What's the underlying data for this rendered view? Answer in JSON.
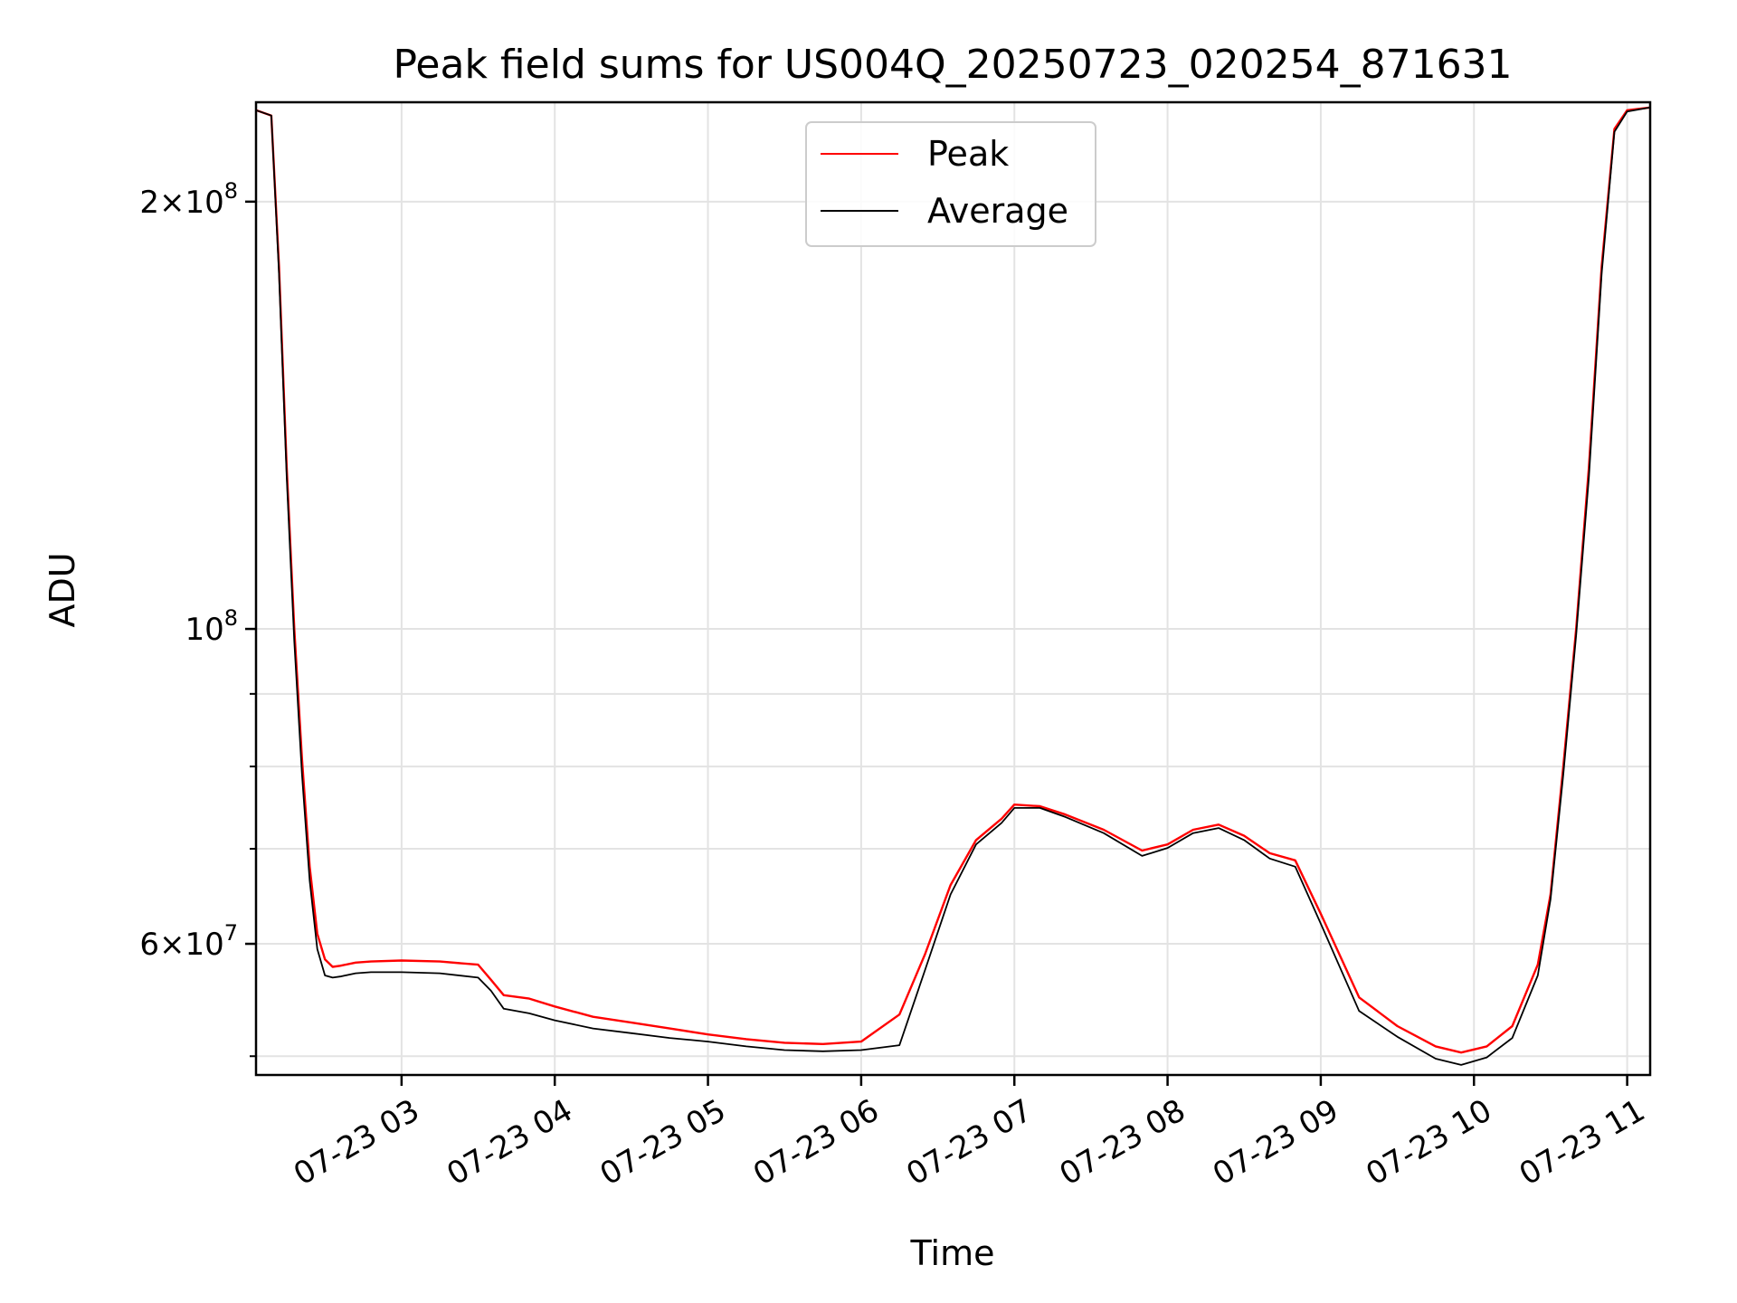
{
  "chart_data": {
    "type": "line",
    "title": "Peak field sums for US004Q_20250723_020254_871631",
    "xlabel": "Time",
    "ylabel": "ADU",
    "y_scale": "log",
    "ylim": [
      48500000,
      235000000
    ],
    "xlim": [
      "2025-07-23 02:03",
      "2025-07-23 11:09"
    ],
    "x_ticks": [
      "07-23 03",
      "07-23 04",
      "07-23 05",
      "07-23 06",
      "07-23 07",
      "07-23 08",
      "07-23 09",
      "07-23 10",
      "07-23 11"
    ],
    "x_tick_values": [
      "2025-07-23 03:00",
      "2025-07-23 04:00",
      "2025-07-23 05:00",
      "2025-07-23 06:00",
      "2025-07-23 07:00",
      "2025-07-23 08:00",
      "2025-07-23 09:00",
      "2025-07-23 10:00",
      "2025-07-23 11:00"
    ],
    "y_ticks": [
      {
        "value": 200000000,
        "base": "2×10",
        "exp": "8"
      },
      {
        "value": 100000000,
        "base": "10",
        "exp": "8"
      },
      {
        "value": 60000000,
        "base": "6×10",
        "exp": "7"
      }
    ],
    "y_minor_ticks": [
      50000000,
      70000000,
      80000000,
      90000000
    ],
    "grid": true,
    "legend_position": "top-center",
    "series": [
      {
        "name": "Peak",
        "color": "#ff0000",
        "x": [
          "2025-07-23 02:03",
          "2025-07-23 02:09",
          "2025-07-23 02:12",
          "2025-07-23 02:15",
          "2025-07-23 02:18",
          "2025-07-23 02:21",
          "2025-07-23 02:24",
          "2025-07-23 02:27",
          "2025-07-23 02:30",
          "2025-07-23 02:33",
          "2025-07-23 02:36",
          "2025-07-23 02:42",
          "2025-07-23 02:48",
          "2025-07-23 03:00",
          "2025-07-23 03:15",
          "2025-07-23 03:30",
          "2025-07-23 03:35",
          "2025-07-23 03:40",
          "2025-07-23 03:50",
          "2025-07-23 04:00",
          "2025-07-23 04:15",
          "2025-07-23 04:30",
          "2025-07-23 04:45",
          "2025-07-23 05:00",
          "2025-07-23 05:15",
          "2025-07-23 05:30",
          "2025-07-23 05:45",
          "2025-07-23 06:00",
          "2025-07-23 06:15",
          "2025-07-23 06:25",
          "2025-07-23 06:35",
          "2025-07-23 06:45",
          "2025-07-23 06:55",
          "2025-07-23 07:00",
          "2025-07-23 07:10",
          "2025-07-23 07:20",
          "2025-07-23 07:35",
          "2025-07-23 07:50",
          "2025-07-23 08:00",
          "2025-07-23 08:10",
          "2025-07-23 08:20",
          "2025-07-23 08:30",
          "2025-07-23 08:40",
          "2025-07-23 08:50",
          "2025-07-23 09:00",
          "2025-07-23 09:15",
          "2025-07-23 09:30",
          "2025-07-23 09:45",
          "2025-07-23 09:55",
          "2025-07-23 10:05",
          "2025-07-23 10:15",
          "2025-07-23 10:25",
          "2025-07-23 10:30",
          "2025-07-23 10:35",
          "2025-07-23 10:40",
          "2025-07-23 10:45",
          "2025-07-23 10:50",
          "2025-07-23 10:55",
          "2025-07-23 11:00",
          "2025-07-23 11:09"
        ],
        "y": [
          232000000,
          230000000,
          180000000,
          130000000,
          100000000,
          81000000,
          68000000,
          61000000,
          58500000,
          57800000,
          57900000,
          58200000,
          58300000,
          58400000,
          58300000,
          58000000,
          56600000,
          55200000,
          54900000,
          54200000,
          53300000,
          52800000,
          52300000,
          51800000,
          51400000,
          51100000,
          51000000,
          51200000,
          53500000,
          59000000,
          66000000,
          71000000,
          73500000,
          75200000,
          75000000,
          74000000,
          72200000,
          69800000,
          70500000,
          72200000,
          72800000,
          71500000,
          69500000,
          68700000,
          63000000,
          55000000,
          52500000,
          50800000,
          50300000,
          50800000,
          52500000,
          58000000,
          65000000,
          80000000,
          100000000,
          130000000,
          180000000,
          225000000,
          232000000,
          233000000
        ]
      },
      {
        "name": "Average",
        "color": "#000000",
        "x": [
          "2025-07-23 02:03",
          "2025-07-23 02:09",
          "2025-07-23 02:12",
          "2025-07-23 02:15",
          "2025-07-23 02:18",
          "2025-07-23 02:21",
          "2025-07-23 02:24",
          "2025-07-23 02:27",
          "2025-07-23 02:30",
          "2025-07-23 02:33",
          "2025-07-23 02:36",
          "2025-07-23 02:42",
          "2025-07-23 02:48",
          "2025-07-23 03:00",
          "2025-07-23 03:15",
          "2025-07-23 03:30",
          "2025-07-23 03:35",
          "2025-07-23 03:40",
          "2025-07-23 03:50",
          "2025-07-23 04:00",
          "2025-07-23 04:15",
          "2025-07-23 04:30",
          "2025-07-23 04:45",
          "2025-07-23 05:00",
          "2025-07-23 05:15",
          "2025-07-23 05:30",
          "2025-07-23 05:45",
          "2025-07-23 06:00",
          "2025-07-23 06:15",
          "2025-07-23 06:25",
          "2025-07-23 06:35",
          "2025-07-23 06:45",
          "2025-07-23 06:55",
          "2025-07-23 07:00",
          "2025-07-23 07:10",
          "2025-07-23 07:20",
          "2025-07-23 07:35",
          "2025-07-23 07:50",
          "2025-07-23 08:00",
          "2025-07-23 08:10",
          "2025-07-23 08:20",
          "2025-07-23 08:30",
          "2025-07-23 08:40",
          "2025-07-23 08:50",
          "2025-07-23 09:00",
          "2025-07-23 09:15",
          "2025-07-23 09:30",
          "2025-07-23 09:45",
          "2025-07-23 09:55",
          "2025-07-23 10:05",
          "2025-07-23 10:15",
          "2025-07-23 10:25",
          "2025-07-23 10:30",
          "2025-07-23 10:35",
          "2025-07-23 10:40",
          "2025-07-23 10:45",
          "2025-07-23 10:50",
          "2025-07-23 10:55",
          "2025-07-23 11:00",
          "2025-07-23 11:09"
        ],
        "y": [
          232000000,
          230000000,
          178000000,
          128000000,
          98000000,
          79000000,
          66500000,
          59500000,
          57000000,
          56800000,
          56900000,
          57200000,
          57300000,
          57300000,
          57200000,
          56800000,
          55600000,
          54000000,
          53600000,
          53000000,
          52300000,
          51900000,
          51500000,
          51200000,
          50800000,
          50500000,
          50400000,
          50500000,
          50900000,
          57500000,
          65000000,
          70500000,
          73000000,
          74800000,
          74800000,
          73700000,
          71800000,
          69200000,
          70100000,
          71800000,
          72400000,
          71000000,
          68900000,
          68000000,
          62000000,
          53800000,
          51600000,
          49800000,
          49300000,
          49900000,
          51500000,
          57000000,
          64500000,
          79000000,
          99000000,
          128000000,
          178000000,
          224000000,
          231500000,
          233000000
        ]
      }
    ]
  }
}
